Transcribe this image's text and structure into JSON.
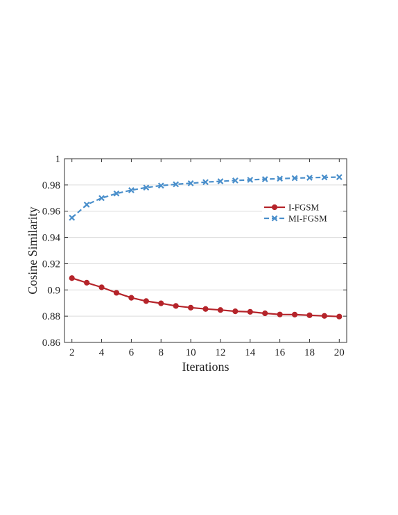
{
  "chart_data": {
    "type": "line",
    "title": "",
    "xlabel": "Iterations",
    "ylabel": "Cosine Similarity",
    "xlim": [
      1.5,
      20.5
    ],
    "ylim": [
      0.86,
      1.0
    ],
    "xticks": [
      2,
      4,
      6,
      8,
      10,
      12,
      14,
      16,
      18,
      20
    ],
    "xtick_labels": [
      "2",
      "4",
      "6",
      "8",
      "10",
      "12",
      "14",
      "16",
      "18",
      "20"
    ],
    "yticks": [
      0.86,
      0.88,
      0.9,
      0.92,
      0.94,
      0.96,
      0.98,
      1.0
    ],
    "ytick_labels": [
      "0.86",
      "0.88",
      "0.9",
      "0.92",
      "0.94",
      "0.96",
      "0.98",
      "1"
    ],
    "grid": "horizontal",
    "legend_position": "right",
    "x": [
      2,
      3,
      4,
      5,
      6,
      7,
      8,
      9,
      10,
      11,
      12,
      13,
      14,
      15,
      16,
      17,
      18,
      19,
      20
    ],
    "series": [
      {
        "name": "I-FGSM",
        "color": "#b5242a",
        "line_style": "solid",
        "marker": "circle",
        "values": [
          0.909,
          0.9055,
          0.902,
          0.8978,
          0.894,
          0.8915,
          0.8898,
          0.8878,
          0.8865,
          0.8855,
          0.8847,
          0.8837,
          0.8833,
          0.8822,
          0.8813,
          0.8812,
          0.8807,
          0.8802,
          0.8797
        ]
      },
      {
        "name": "MI-FGSM",
        "color": "#4a8fcb",
        "line_style": "dashed",
        "marker": "x",
        "values": [
          0.955,
          0.965,
          0.97,
          0.9735,
          0.976,
          0.978,
          0.9795,
          0.9805,
          0.9813,
          0.9822,
          0.9828,
          0.9834,
          0.9839,
          0.9844,
          0.9848,
          0.9852,
          0.9855,
          0.9858,
          0.986
        ]
      }
    ]
  }
}
